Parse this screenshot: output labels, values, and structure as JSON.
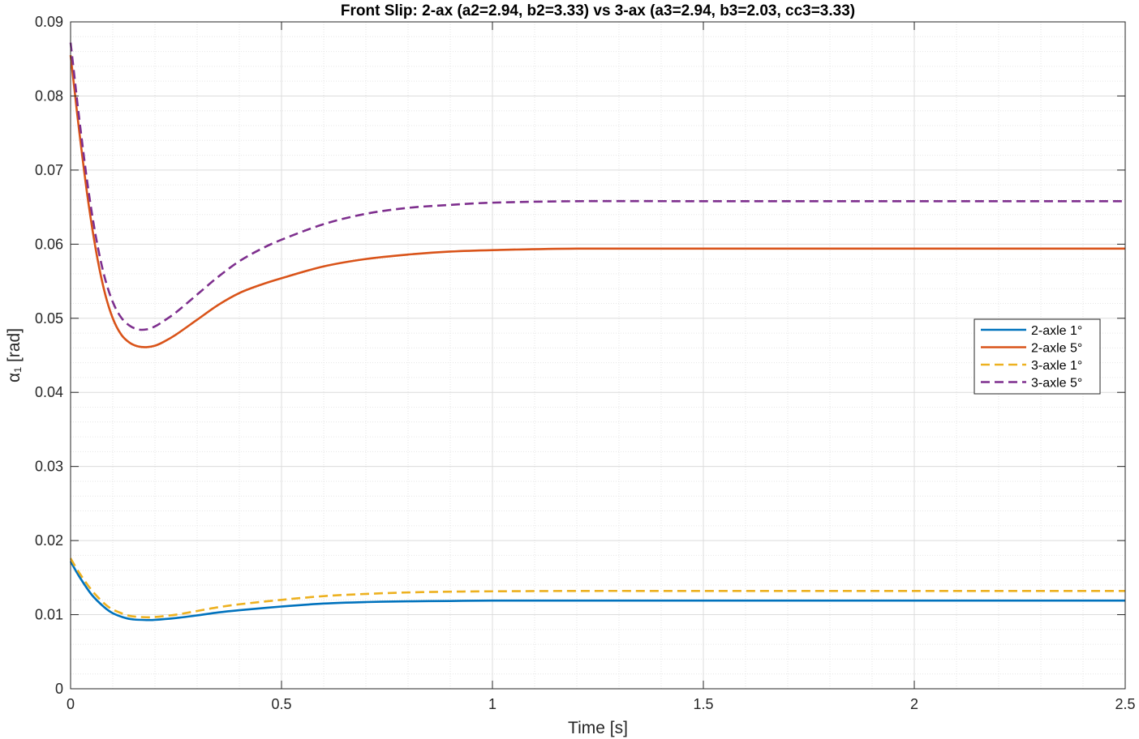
{
  "chart_data": {
    "type": "line",
    "title": "Front Slip: 2-ax (a2=2.94, b2=3.33) vs 3-ax (a3=2.94, b3=2.03, cc3=3.33)",
    "xlabel": "Time [s]",
    "ylabel": "α₁  [rad]",
    "xlim": [
      0,
      2.5
    ],
    "ylim": [
      0,
      0.09
    ],
    "xticks": [
      0,
      0.5,
      1,
      1.5,
      2,
      2.5
    ],
    "xtick_labels": [
      "0",
      "0.5",
      "1",
      "1.5",
      "2",
      "2.5"
    ],
    "yticks": [
      0,
      0.01,
      0.02,
      0.03,
      0.04,
      0.05,
      0.06,
      0.07,
      0.08,
      0.09
    ],
    "ytick_labels": [
      "0",
      "0.01",
      "0.02",
      "0.03",
      "0.04",
      "0.05",
      "0.06",
      "0.07",
      "0.08",
      "0.09"
    ],
    "grid": true,
    "minor_grid": true,
    "legend_position": "right",
    "series": [
      {
        "name": "2-axle 1°",
        "color": "#0072BD",
        "style": "solid",
        "x": [
          0,
          0.02,
          0.05,
          0.08,
          0.1,
          0.13,
          0.15,
          0.18,
          0.2,
          0.25,
          0.3,
          0.35,
          0.4,
          0.5,
          0.6,
          0.7,
          0.8,
          0.9,
          1.0,
          1.2,
          1.5,
          2.0,
          2.5
        ],
        "y": [
          0.0172,
          0.0152,
          0.0127,
          0.011,
          0.0102,
          0.00955,
          0.00935,
          0.00928,
          0.0093,
          0.00955,
          0.0099,
          0.0103,
          0.0106,
          0.0111,
          0.0115,
          0.0117,
          0.0118,
          0.01185,
          0.0119,
          0.0119,
          0.0119,
          0.0119,
          0.0119
        ]
      },
      {
        "name": "2-axle 5°",
        "color": "#D95319",
        "style": "solid",
        "x": [
          0,
          0.01,
          0.02,
          0.04,
          0.06,
          0.08,
          0.1,
          0.12,
          0.14,
          0.16,
          0.18,
          0.2,
          0.22,
          0.25,
          0.3,
          0.35,
          0.4,
          0.45,
          0.5,
          0.6,
          0.7,
          0.8,
          0.9,
          1.0,
          1.2,
          1.5,
          2.0,
          2.5
        ],
        "y": [
          0.0855,
          0.0805,
          0.0755,
          0.0665,
          0.0592,
          0.0537,
          0.05,
          0.0478,
          0.0467,
          0.0462,
          0.0461,
          0.0463,
          0.0468,
          0.0478,
          0.0498,
          0.0518,
          0.0534,
          0.0545,
          0.0554,
          0.057,
          0.058,
          0.0586,
          0.059,
          0.0592,
          0.0594,
          0.0594,
          0.0594,
          0.0594
        ]
      },
      {
        "name": "3-axle 1°",
        "color": "#EDB120",
        "style": "dashed",
        "x": [
          0,
          0.02,
          0.05,
          0.08,
          0.1,
          0.13,
          0.15,
          0.18,
          0.2,
          0.25,
          0.3,
          0.35,
          0.4,
          0.5,
          0.6,
          0.7,
          0.8,
          0.9,
          1.0,
          1.2,
          1.5,
          2.0,
          2.5
        ],
        "y": [
          0.0176,
          0.0157,
          0.0133,
          0.0115,
          0.0107,
          0.01,
          0.00975,
          0.00965,
          0.00968,
          0.01,
          0.0105,
          0.011,
          0.0114,
          0.012,
          0.0125,
          0.0128,
          0.013,
          0.0131,
          0.01315,
          0.0132,
          0.0132,
          0.0132,
          0.0132
        ]
      },
      {
        "name": "3-axle 5°",
        "color": "#7E2F8E",
        "style": "dashed",
        "x": [
          0,
          0.01,
          0.02,
          0.04,
          0.06,
          0.08,
          0.1,
          0.12,
          0.14,
          0.16,
          0.18,
          0.2,
          0.22,
          0.25,
          0.3,
          0.35,
          0.4,
          0.45,
          0.5,
          0.6,
          0.7,
          0.8,
          0.9,
          1.0,
          1.2,
          1.5,
          2.0,
          2.5
        ],
        "y": [
          0.0872,
          0.0822,
          0.0772,
          0.0682,
          0.061,
          0.0557,
          0.0522,
          0.0501,
          0.049,
          0.0485,
          0.0485,
          0.0489,
          0.0496,
          0.0508,
          0.0532,
          0.0556,
          0.0577,
          0.0593,
          0.0606,
          0.0627,
          0.0641,
          0.0649,
          0.0653,
          0.0656,
          0.0658,
          0.0658,
          0.0658,
          0.0658
        ]
      }
    ]
  }
}
